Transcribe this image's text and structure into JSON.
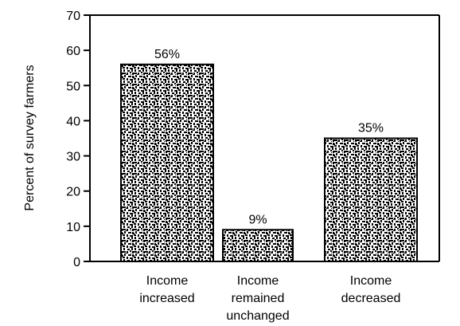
{
  "chart_data": {
    "type": "bar",
    "categories": [
      [
        "Income",
        "increased"
      ],
      [
        "Income",
        "remained",
        "unchanged"
      ],
      [
        "Income",
        "decreased"
      ]
    ],
    "values": [
      56,
      9,
      35
    ],
    "data_labels": [
      "56%",
      "9%",
      "35%"
    ],
    "ylabel": "Percent of survey farmers",
    "xlabel": "",
    "title": "",
    "ylim": [
      0,
      70
    ],
    "yticks": [
      0,
      10,
      20,
      30,
      40,
      50,
      60,
      70
    ],
    "grid": false,
    "legend": "none",
    "bar_color": "#000000",
    "bar_pattern": "black-and-white speckle"
  }
}
